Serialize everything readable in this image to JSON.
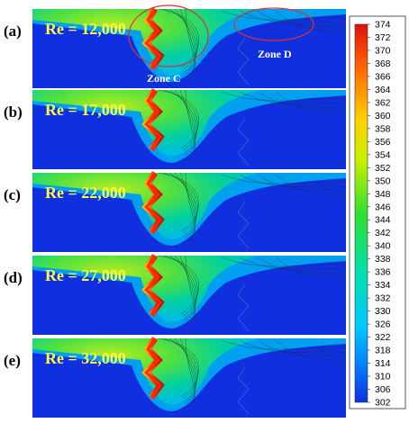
{
  "panels": [
    {
      "letter": "(a)",
      "re_label": "Re = 12,000"
    },
    {
      "letter": "(b)",
      "re_label": "Re = 17,000"
    },
    {
      "letter": "(c)",
      "re_label": "Re = 22,000"
    },
    {
      "letter": "(d)",
      "re_label": "Re = 27,000"
    },
    {
      "letter": "(e)",
      "re_label": "Re = 32,000"
    }
  ],
  "zones": [
    {
      "label": "Zone C"
    },
    {
      "label": "Zone D"
    }
  ],
  "colorbar": {
    "ticks": [
      "374",
      "372",
      "370",
      "368",
      "366",
      "364",
      "362",
      "360",
      "358",
      "356",
      "354",
      "352",
      "350",
      "348",
      "346",
      "344",
      "342",
      "340",
      "338",
      "336",
      "334",
      "332",
      "330",
      "326",
      "322",
      "318",
      "314",
      "310",
      "306",
      "302"
    ]
  },
  "colors": {
    "background": "#1030e0",
    "zone_circle": "#e03030",
    "re_text": "#ffff44"
  }
}
